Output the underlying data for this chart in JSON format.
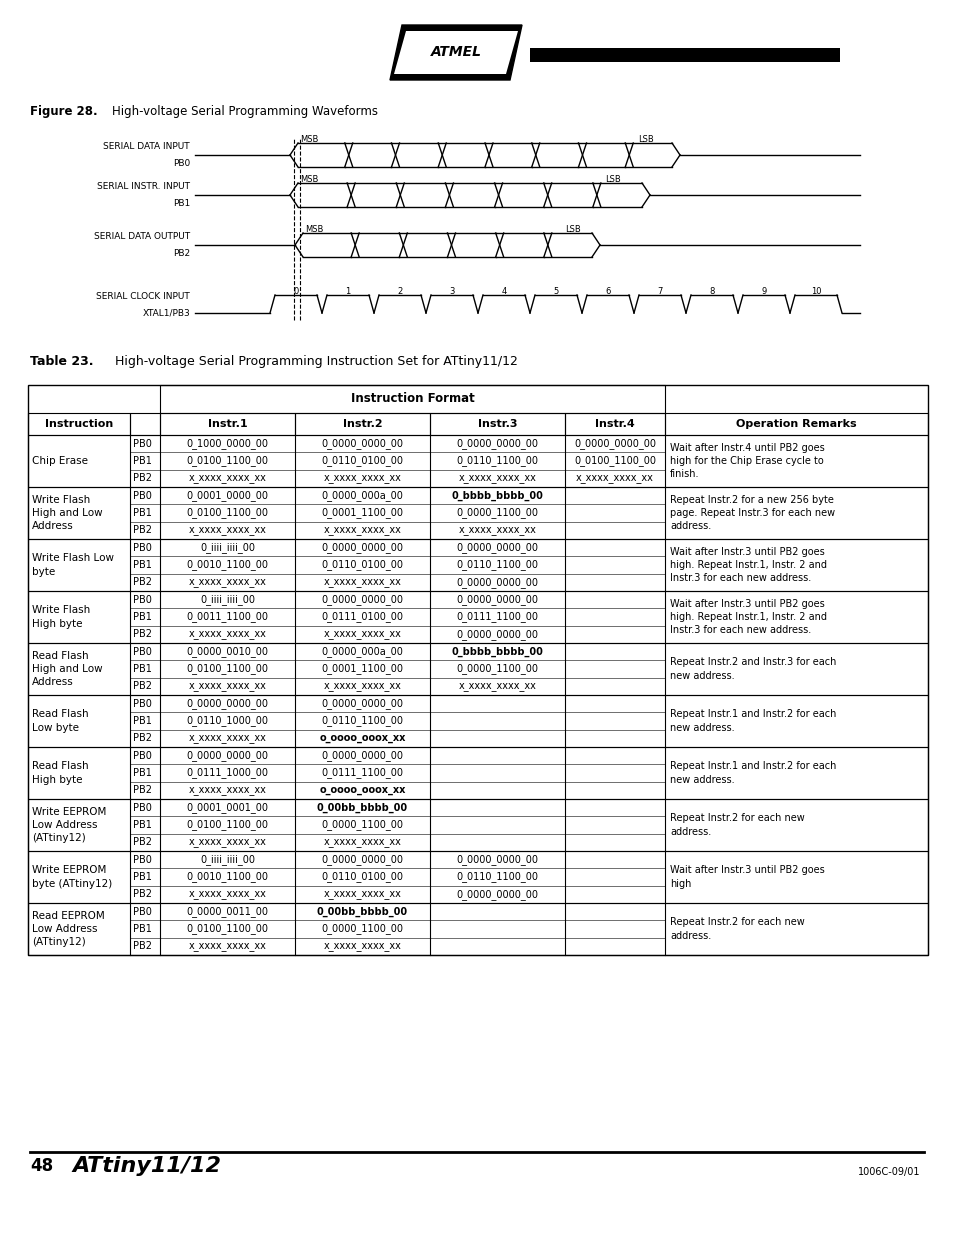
{
  "title": "ATtiny11/12",
  "page_num": "48",
  "doc_ref": "1006C-09/01",
  "fig_label": "Figure 28.",
  "fig_subtitle": "High-voltage Serial Programming Waveforms",
  "table_label": "Table 23.",
  "table_subtitle": "High-voltage Serial Programming Instruction Set for ATtiny11/12",
  "table_rows": [
    {
      "instruction": "Chip Erase",
      "sub_rows": [
        {
          "pb": "PB0",
          "i1": "0_1000_0000_00",
          "i2": "0_0000_0000_00",
          "i3": "0_0000_0000_00",
          "i4": "0_0000_0000_00"
        },
        {
          "pb": "PB1",
          "i1": "0_0100_1100_00",
          "i2": "0_0110_0100_00",
          "i3": "0_0110_1100_00",
          "i4": "0_0100_1100_00"
        },
        {
          "pb": "PB2",
          "i1": "x_xxxx_xxxx_xx",
          "i2": "x_xxxx_xxxx_xx",
          "i3": "x_xxxx_xxxx_xx",
          "i4": "x_xxxx_xxxx_xx"
        }
      ],
      "remark": "Wait after Instr.4 until PB2 goes\nhigh for the Chip Erase cycle to\nfinish."
    },
    {
      "instruction": "Write Flash\nHigh and Low\nAddress",
      "sub_rows": [
        {
          "pb": "PB0",
          "i1": "0_0001_0000_00",
          "i2": "0_0000_000a_00",
          "i3": "0_bbbb_bbbb_00",
          "i4": "",
          "i3_bold": true
        },
        {
          "pb": "PB1",
          "i1": "0_0100_1100_00",
          "i2": "0_0001_1100_00",
          "i3": "0_0000_1100_00",
          "i4": ""
        },
        {
          "pb": "PB2",
          "i1": "x_xxxx_xxxx_xx",
          "i2": "x_xxxx_xxxx_xx",
          "i3": "x_xxxx_xxxx_xx",
          "i4": ""
        }
      ],
      "remark": "Repeat Instr.2 for a new 256 byte\npage. Repeat Instr.3 for each new\naddress."
    },
    {
      "instruction": "Write Flash Low\nbyte",
      "sub_rows": [
        {
          "pb": "PB0",
          "i1": "0_iiii_iiii_00",
          "i2": "0_0000_0000_00",
          "i3": "0_0000_0000_00",
          "i4": ""
        },
        {
          "pb": "PB1",
          "i1": "0_0010_1100_00",
          "i2": "0_0110_0100_00",
          "i3": "0_0110_1100_00",
          "i4": ""
        },
        {
          "pb": "PB2",
          "i1": "x_xxxx_xxxx_xx",
          "i2": "x_xxxx_xxxx_xx",
          "i3": "0_0000_0000_00",
          "i4": ""
        }
      ],
      "remark": "Wait after Instr.3 until PB2 goes\nhigh. Repeat Instr.1, Instr. 2 and\nInstr.3 for each new address."
    },
    {
      "instruction": "Write Flash\nHigh byte",
      "sub_rows": [
        {
          "pb": "PB0",
          "i1": "0_iiii_iiii_00",
          "i2": "0_0000_0000_00",
          "i3": "0_0000_0000_00",
          "i4": ""
        },
        {
          "pb": "PB1",
          "i1": "0_0011_1100_00",
          "i2": "0_0111_0100_00",
          "i3": "0_0111_1100_00",
          "i4": ""
        },
        {
          "pb": "PB2",
          "i1": "x_xxxx_xxxx_xx",
          "i2": "x_xxxx_xxxx_xx",
          "i3": "0_0000_0000_00",
          "i4": ""
        }
      ],
      "remark": "Wait after Instr.3 until PB2 goes\nhigh. Repeat Instr.1, Instr. 2 and\nInstr.3 for each new address."
    },
    {
      "instruction": "Read Flash\nHigh and Low\nAddress",
      "sub_rows": [
        {
          "pb": "PB0",
          "i1": "0_0000_0010_00",
          "i2": "0_0000_000a_00",
          "i3": "0_bbbb_bbbb_00",
          "i4": "",
          "i3_bold": true
        },
        {
          "pb": "PB1",
          "i1": "0_0100_1100_00",
          "i2": "0_0001_1100_00",
          "i3": "0_0000_1100_00",
          "i4": ""
        },
        {
          "pb": "PB2",
          "i1": "x_xxxx_xxxx_xx",
          "i2": "x_xxxx_xxxx_xx",
          "i3": "x_xxxx_xxxx_xx",
          "i4": ""
        }
      ],
      "remark": "Repeat Instr.2 and Instr.3 for each\nnew address."
    },
    {
      "instruction": "Read Flash\nLow byte",
      "sub_rows": [
        {
          "pb": "PB0",
          "i1": "0_0000_0000_00",
          "i2": "0_0000_0000_00",
          "i3": "",
          "i4": ""
        },
        {
          "pb": "PB1",
          "i1": "0_0110_1000_00",
          "i2": "0_0110_1100_00",
          "i3": "",
          "i4": ""
        },
        {
          "pb": "PB2",
          "i1": "x_xxxx_xxxx_xx",
          "i2": "o_oooo_ooox_xx",
          "i3": "",
          "i4": "",
          "i2_bold": true
        }
      ],
      "remark": "Repeat Instr.1 and Instr.2 for each\nnew address."
    },
    {
      "instruction": "Read Flash\nHigh byte",
      "sub_rows": [
        {
          "pb": "PB0",
          "i1": "0_0000_0000_00",
          "i2": "0_0000_0000_00",
          "i3": "",
          "i4": ""
        },
        {
          "pb": "PB1",
          "i1": "0_0111_1000_00",
          "i2": "0_0111_1100_00",
          "i3": "",
          "i4": ""
        },
        {
          "pb": "PB2",
          "i1": "x_xxxx_xxxx_xx",
          "i2": "o_oooo_ooox_xx",
          "i3": "",
          "i4": "",
          "i2_bold": true
        }
      ],
      "remark": "Repeat Instr.1 and Instr.2 for each\nnew address."
    },
    {
      "instruction": "Write EEPROM\nLow Address\n(ATtiny12)",
      "sub_rows": [
        {
          "pb": "PB0",
          "i1": "0_0001_0001_00",
          "i2": "0_00bb_bbbb_00",
          "i3": "",
          "i4": "",
          "i2_bold": true
        },
        {
          "pb": "PB1",
          "i1": "0_0100_1100_00",
          "i2": "0_0000_1100_00",
          "i3": "",
          "i4": ""
        },
        {
          "pb": "PB2",
          "i1": "x_xxxx_xxxx_xx",
          "i2": "x_xxxx_xxxx_xx",
          "i3": "",
          "i4": ""
        }
      ],
      "remark": "Repeat Instr.2 for each new\naddress."
    },
    {
      "instruction": "Write EEPROM\nbyte (ATtiny12)",
      "sub_rows": [
        {
          "pb": "PB0",
          "i1": "0_iiii_iiii_00",
          "i2": "0_0000_0000_00",
          "i3": "0_0000_0000_00",
          "i4": ""
        },
        {
          "pb": "PB1",
          "i1": "0_0010_1100_00",
          "i2": "0_0110_0100_00",
          "i3": "0_0110_1100_00",
          "i4": ""
        },
        {
          "pb": "PB2",
          "i1": "x_xxxx_xxxx_xx",
          "i2": "x_xxxx_xxxx_xx",
          "i3": "0_0000_0000_00",
          "i4": ""
        }
      ],
      "remark": "Wait after Instr.3 until PB2 goes\nhigh"
    },
    {
      "instruction": "Read EEPROM\nLow Address\n(ATtiny12)",
      "sub_rows": [
        {
          "pb": "PB0",
          "i1": "0_0000_0011_00",
          "i2": "0_00bb_bbbb_00",
          "i3": "",
          "i4": "",
          "i2_bold": true
        },
        {
          "pb": "PB1",
          "i1": "0_0100_1100_00",
          "i2": "0_0000_1100_00",
          "i3": "",
          "i4": ""
        },
        {
          "pb": "PB2",
          "i1": "x_xxxx_xxxx_xx",
          "i2": "x_xxxx_xxxx_xx",
          "i3": "",
          "i4": ""
        }
      ],
      "remark": "Repeat Instr.2 for each new\naddress."
    }
  ]
}
